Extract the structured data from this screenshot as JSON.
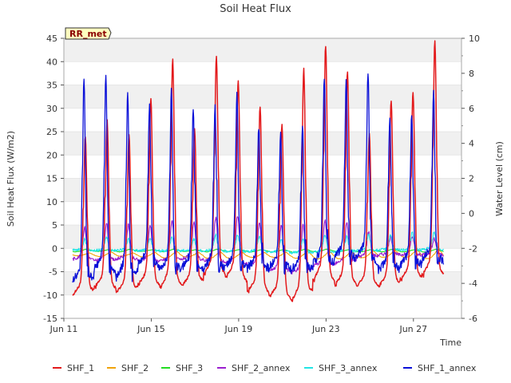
{
  "chart_data": {
    "type": "line",
    "title": "Soil Heat Flux",
    "site_badge": "RR_met",
    "xlabel": "Time",
    "ylabel": "Soil Heat Flux (W/m2)",
    "y2label": "Water Level (cm)",
    "xlim": [
      0,
      18.2
    ],
    "ylim": [
      -15,
      45
    ],
    "y2lim": [
      -6,
      10
    ],
    "x_ticks": [
      {
        "label": "Jun 11",
        "day": 0
      },
      {
        "label": "Jun 15",
        "day": 4
      },
      {
        "label": "Jun 19",
        "day": 8
      },
      {
        "label": "Jun 23",
        "day": 12
      },
      {
        "label": "Jun 27",
        "day": 16
      }
    ],
    "y_ticks": [
      "-15",
      "-10",
      "-5",
      "0",
      "5",
      "10",
      "15",
      "20",
      "25",
      "30",
      "35",
      "40",
      "45"
    ],
    "y2_ticks": [
      "-6",
      "-4",
      "-2",
      "0",
      "2",
      "4",
      "6",
      "8",
      "10"
    ],
    "grid": true,
    "legend_position": "bottom",
    "series": [
      {
        "name": "SHF_1",
        "color": "#e31a1c",
        "axis": "left",
        "daily_max": [
          24,
          27.5,
          24.5,
          32,
          40.5,
          25.5,
          41,
          36,
          30.5,
          26.5,
          38.5,
          43.5,
          38,
          24.5,
          31.5,
          33.5,
          44.5
        ],
        "daily_min": [
          -11,
          -9.5,
          -10.5,
          -9,
          -10,
          -9,
          -7,
          -7.5,
          -10.5,
          -11.5,
          -13,
          -8.5,
          -9.5,
          -9,
          -9.5,
          -8,
          -7.5
        ]
      },
      {
        "name": "SHF_2",
        "color": "#f0a30a",
        "axis": "left",
        "daily_max": [
          -1,
          -0.8,
          -1,
          -0.9,
          -0.7,
          -0.9,
          -0.8,
          -0.9,
          -0.9,
          -0.9,
          -0.6,
          -0.7,
          -0.8,
          -0.6,
          -0.5,
          -0.4,
          -0.3
        ],
        "daily_min": [
          -1.6,
          -1.8,
          -1.7,
          -1.9,
          -2.1,
          -1.9,
          -2.2,
          -2.2,
          -2,
          -2,
          -2.2,
          -2.3,
          -2.3,
          -2.1,
          -2,
          -2,
          -2.3
        ]
      },
      {
        "name": "SHF_3",
        "color": "#22dd22",
        "axis": "left",
        "daily_max": [
          -0.2,
          -0.3,
          -0.2,
          -0.3,
          -0.2,
          -0.3,
          -0.2,
          -0.3,
          -0.3,
          -0.3,
          -0.2,
          -0.2,
          -0.3,
          -0.3,
          -0.2,
          -0.3,
          -0.2
        ],
        "daily_min": [
          -0.8,
          -0.7,
          -0.8,
          -0.7,
          -0.8,
          -0.7,
          -0.8,
          -0.7,
          -0.8,
          -0.8,
          -0.9,
          -0.8,
          -0.8,
          -0.8,
          -0.8,
          -0.8,
          -0.9
        ]
      },
      {
        "name": "SHF_2_annex",
        "color": "#9b1fcf",
        "axis": "left",
        "daily_max": [
          4.5,
          5.5,
          5,
          5,
          6,
          5.5,
          6.5,
          7,
          5.5,
          5,
          5,
          6,
          5.5,
          3.5,
          2.5,
          2.5,
          2
        ],
        "daily_min": [
          -2.5,
          -3,
          -2.5,
          -3,
          -3,
          -2.5,
          -3,
          -3.5,
          -4,
          -5,
          -5.5,
          -4,
          -3.5,
          -2,
          -1.5,
          -1.5,
          -1.5
        ]
      },
      {
        "name": "SHF_3_annex",
        "color": "#22e5e5",
        "axis": "left",
        "daily_max": [
          2,
          2.5,
          2,
          2,
          2.5,
          2,
          3,
          3,
          2.5,
          2,
          2,
          3,
          2.5,
          3,
          3,
          3.5,
          3.5
        ],
        "daily_min": [
          -0.5,
          -0.6,
          -0.5,
          -0.6,
          -0.7,
          -0.6,
          -0.7,
          -0.8,
          -0.8,
          -0.9,
          -1,
          -0.9,
          -0.8,
          -0.6,
          -0.5,
          -0.5,
          -0.4
        ]
      },
      {
        "name": "SHF_1_annex",
        "color": "#0a10d8",
        "axis": "left",
        "daily_max": [
          37,
          36.5,
          33.5,
          31,
          33.5,
          29.5,
          30,
          33.5,
          26,
          25,
          26.5,
          37,
          35.5,
          37.5,
          28.5,
          29,
          33.5
        ],
        "daily_min": [
          -9,
          -6,
          -7.5,
          -5,
          -6,
          -5.5,
          -5.5,
          -5.5,
          -5.5,
          -5,
          -6,
          -5,
          -3.5,
          -3.5,
          -6,
          -5,
          -4
        ]
      }
    ]
  }
}
